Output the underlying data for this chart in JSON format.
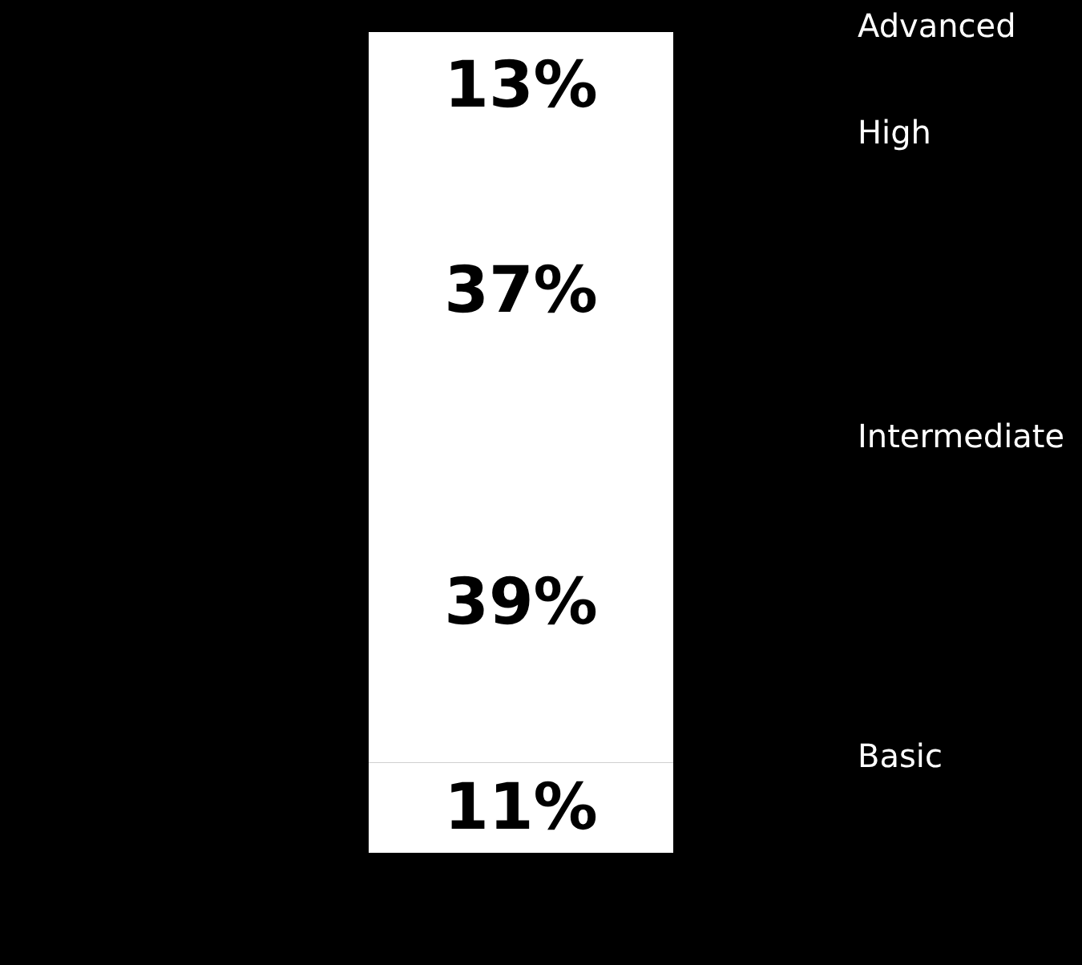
{
  "chart_data": {
    "type": "bar",
    "stacked": true,
    "categories": [
      null
    ],
    "tick_labels": false,
    "series": [
      {
        "name": "Basic",
        "color": "#ffffff",
        "values": [
          11
        ],
        "value_labels": [
          "11%"
        ]
      },
      {
        "name": "Intermediate",
        "color": "#ffffff",
        "values": [
          39
        ],
        "value_labels": [
          "39%"
        ]
      },
      {
        "name": "High",
        "color": "#ffffff",
        "values": [
          37
        ],
        "value_labels": [
          "37%"
        ]
      },
      {
        "name": "Advanced",
        "color": "#ffffff",
        "values": [
          13
        ],
        "value_labels": [
          "13%"
        ]
      }
    ]
  }
}
